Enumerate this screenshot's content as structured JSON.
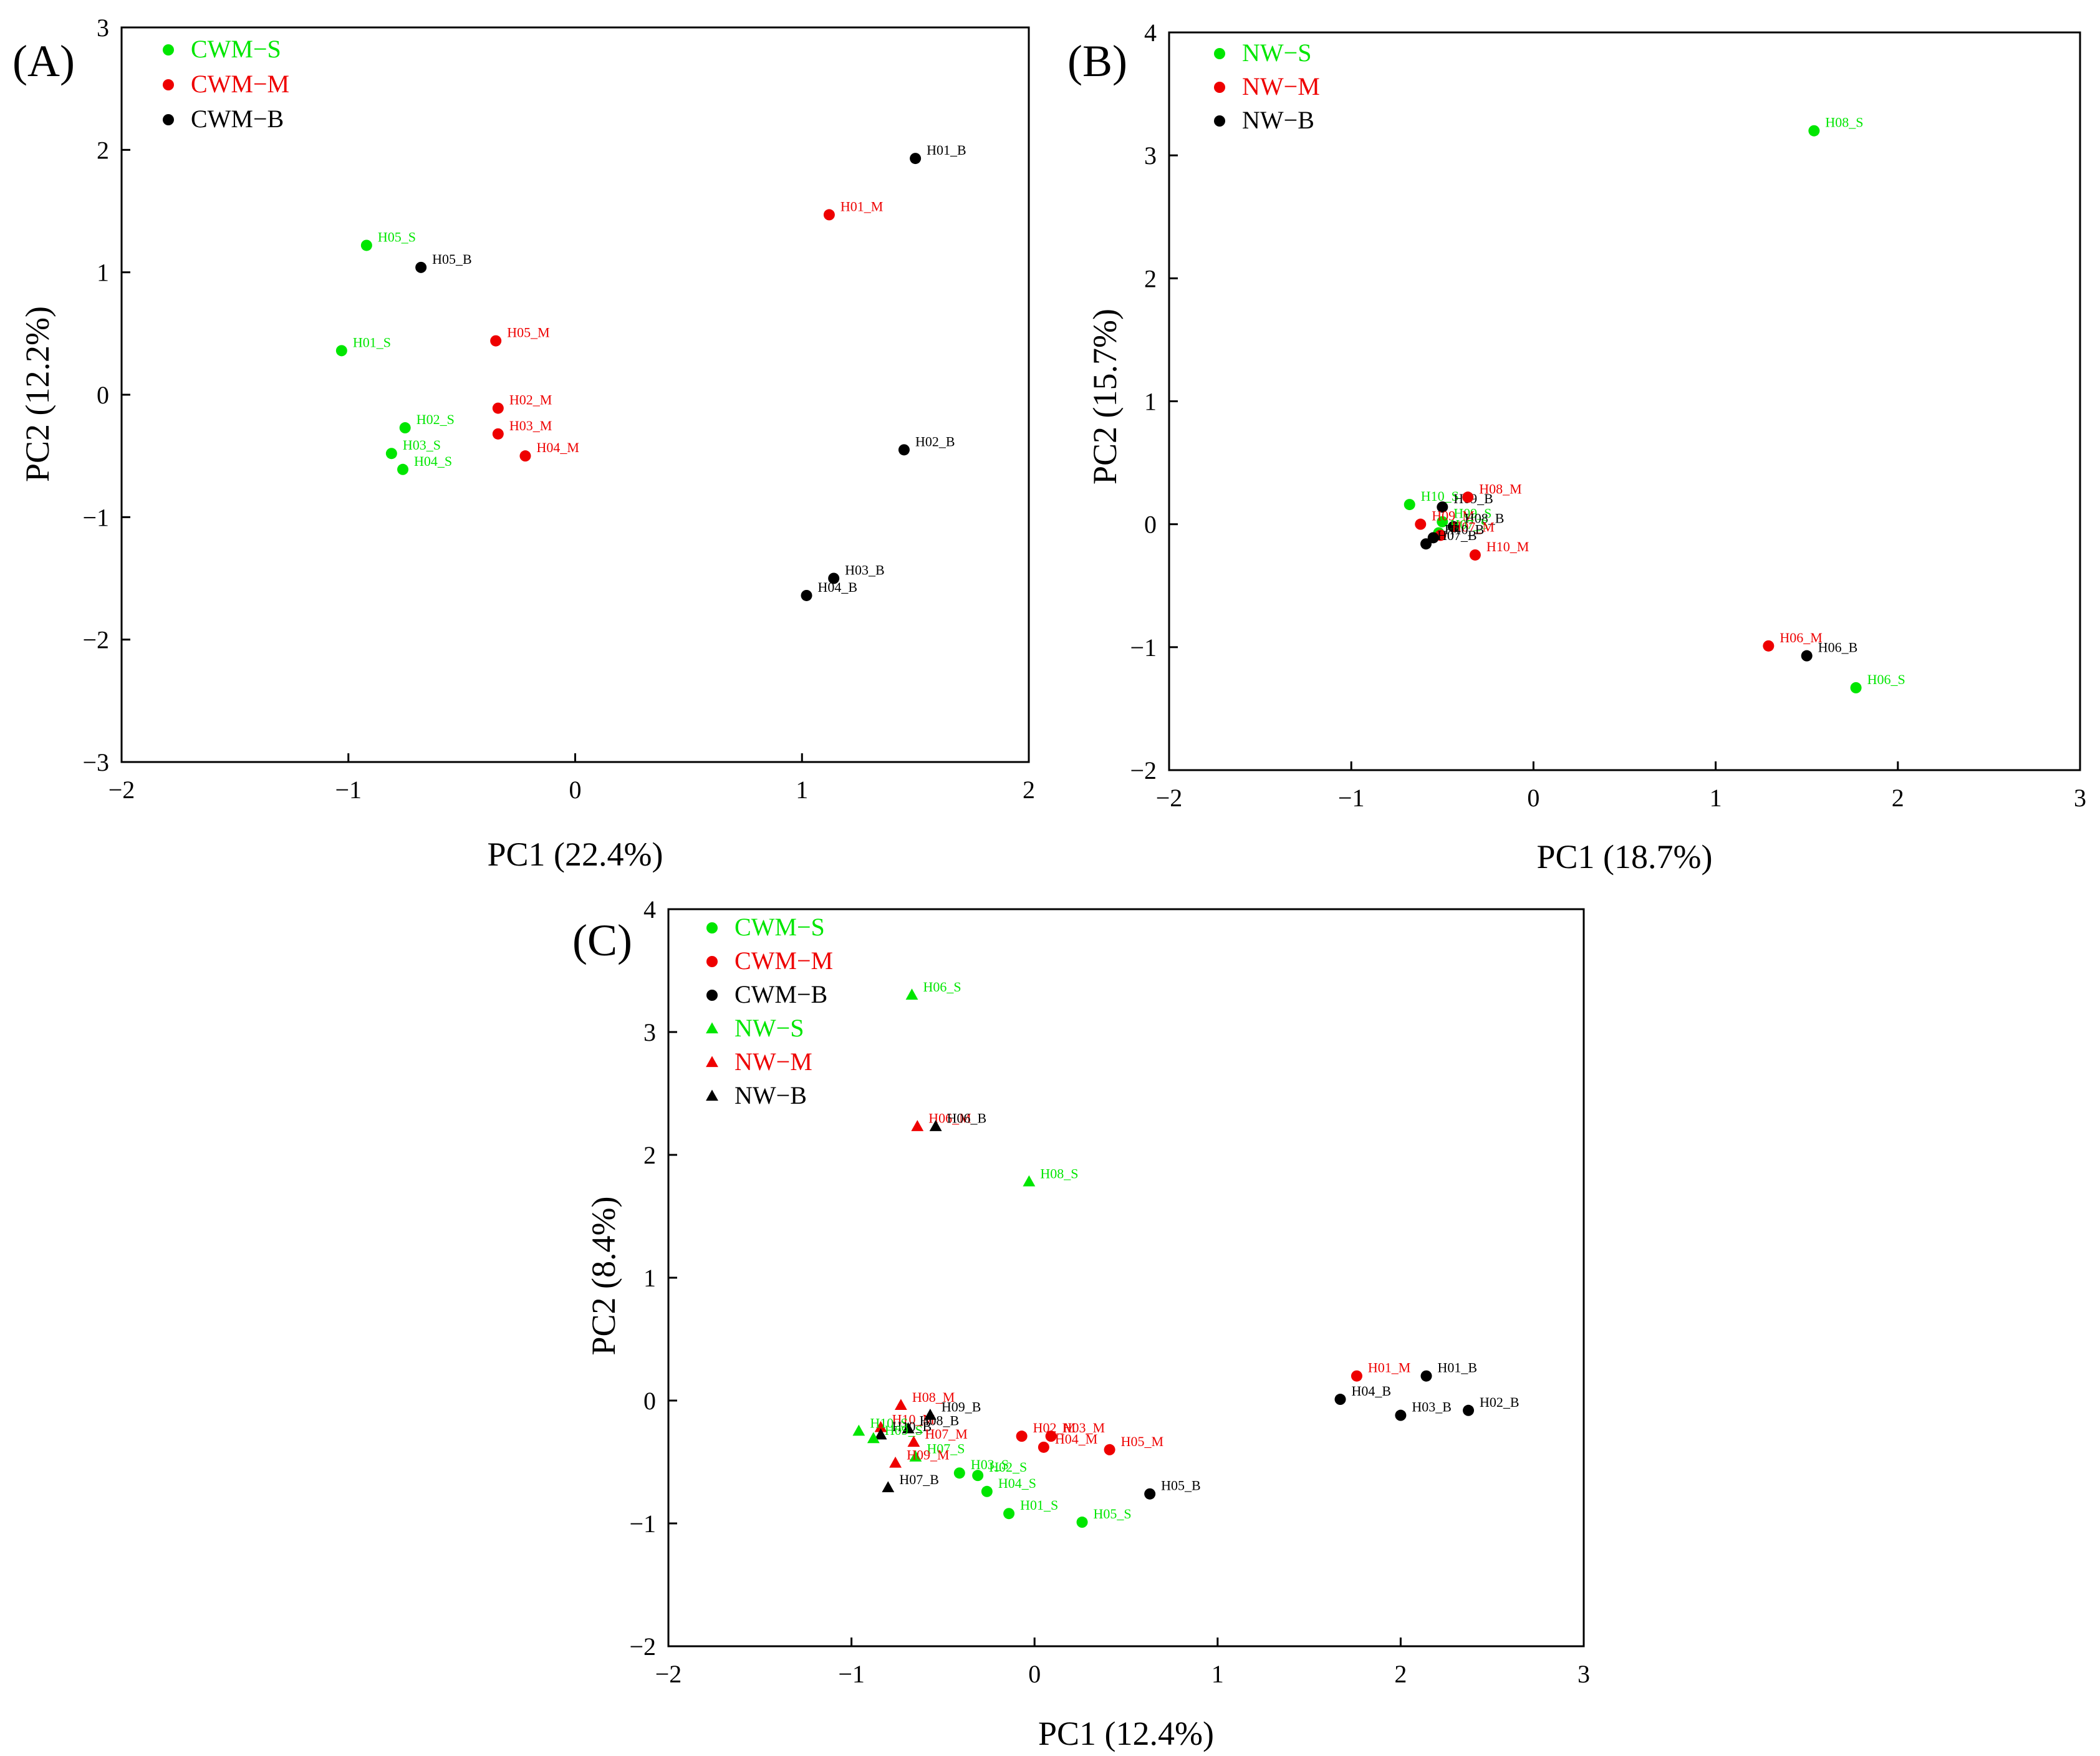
{
  "colors": {
    "S": "#00e600",
    "M": "#ee0000",
    "B": "#000000",
    "axis": "#000000"
  },
  "chart_data": [
    {
      "panel": "(A)",
      "type": "scatter",
      "xlabel": "PC1 (22.4%)",
      "ylabel": "PC2 (12.2%)",
      "xlim": [
        -2,
        2
      ],
      "ylim": [
        -3,
        3
      ],
      "xticks": [
        -2,
        -1,
        0,
        1,
        2
      ],
      "yticks": [
        -3,
        -2,
        -1,
        0,
        1,
        2,
        3
      ],
      "legend_position": "top-left",
      "legend": [
        {
          "label": "CWM−S",
          "group": "S",
          "marker": "circle"
        },
        {
          "label": "CWM−M",
          "group": "M",
          "marker": "circle"
        },
        {
          "label": "CWM−B",
          "group": "B",
          "marker": "circle"
        }
      ],
      "points": [
        {
          "label": "H01_B",
          "group": "B",
          "marker": "circle",
          "x": 1.5,
          "y": 1.93
        },
        {
          "label": "H01_M",
          "group": "M",
          "marker": "circle",
          "x": 1.12,
          "y": 1.47
        },
        {
          "label": "H05_S",
          "group": "S",
          "marker": "circle",
          "x": -0.92,
          "y": 1.22
        },
        {
          "label": "H05_B",
          "group": "B",
          "marker": "circle",
          "x": -0.68,
          "y": 1.04
        },
        {
          "label": "H01_S",
          "group": "S",
          "marker": "circle",
          "x": -1.03,
          "y": 0.36
        },
        {
          "label": "H05_M",
          "group": "M",
          "marker": "circle",
          "x": -0.35,
          "y": 0.44
        },
        {
          "label": "H02_M",
          "group": "M",
          "marker": "circle",
          "x": -0.34,
          "y": -0.11
        },
        {
          "label": "H02_S",
          "group": "S",
          "marker": "circle",
          "x": -0.75,
          "y": -0.27
        },
        {
          "label": "H03_M",
          "group": "M",
          "marker": "circle",
          "x": -0.34,
          "y": -0.32
        },
        {
          "label": "H03_S",
          "group": "S",
          "marker": "circle",
          "x": -0.81,
          "y": -0.48
        },
        {
          "label": "H04_M",
          "group": "M",
          "marker": "circle",
          "x": -0.22,
          "y": -0.5
        },
        {
          "label": "H04_S",
          "group": "S",
          "marker": "circle",
          "x": -0.76,
          "y": -0.61
        },
        {
          "label": "H02_B",
          "group": "B",
          "marker": "circle",
          "x": 1.45,
          "y": -0.45
        },
        {
          "label": "H03_B",
          "group": "B",
          "marker": "circle",
          "x": 1.14,
          "y": -1.5
        },
        {
          "label": "H04_B",
          "group": "B",
          "marker": "circle",
          "x": 1.02,
          "y": -1.64
        }
      ]
    },
    {
      "panel": "(B)",
      "type": "scatter",
      "xlabel": "PC1 (18.7%)",
      "ylabel": "PC2 (15.7%)",
      "xlim": [
        -2,
        3
      ],
      "ylim": [
        -2,
        4
      ],
      "xticks": [
        -2,
        -1,
        0,
        1,
        2,
        3
      ],
      "yticks": [
        -2,
        -1,
        0,
        1,
        2,
        3,
        4
      ],
      "legend_position": "top-left",
      "legend": [
        {
          "label": "NW−S",
          "group": "S",
          "marker": "circle"
        },
        {
          "label": "NW−M",
          "group": "M",
          "marker": "circle"
        },
        {
          "label": "NW−B",
          "group": "B",
          "marker": "circle"
        }
      ],
      "points": [
        {
          "label": "H08_S",
          "group": "S",
          "marker": "circle",
          "x": 1.54,
          "y": 3.2
        },
        {
          "label": "H10_S",
          "group": "S",
          "marker": "circle",
          "x": -0.68,
          "y": 0.16
        },
        {
          "label": "H09_B",
          "group": "B",
          "marker": "circle",
          "x": -0.5,
          "y": 0.14
        },
        {
          "label": "H08_M",
          "group": "M",
          "marker": "circle",
          "x": -0.36,
          "y": 0.22
        },
        {
          "label": "H09_S",
          "group": "S",
          "marker": "circle",
          "x": -0.5,
          "y": 0.02
        },
        {
          "label": "H09_M",
          "group": "M",
          "marker": "circle",
          "x": -0.62,
          "y": 0.0
        },
        {
          "label": "H08_B",
          "group": "B",
          "marker": "circle",
          "x": -0.44,
          "y": -0.02
        },
        {
          "label": "H07_S",
          "group": "S",
          "marker": "circle",
          "x": -0.52,
          "y": -0.07
        },
        {
          "label": "H07_M",
          "group": "M",
          "marker": "circle",
          "x": -0.51,
          "y": -0.09
        },
        {
          "label": "H10_B",
          "group": "B",
          "marker": "circle",
          "x": -0.55,
          "y": -0.11
        },
        {
          "label": "H07_B",
          "group": "B",
          "marker": "circle",
          "x": -0.59,
          "y": -0.16
        },
        {
          "label": "H10_M",
          "group": "M",
          "marker": "circle",
          "x": -0.32,
          "y": -0.25
        },
        {
          "label": "H06_M",
          "group": "M",
          "marker": "circle",
          "x": 1.29,
          "y": -0.99
        },
        {
          "label": "H06_B",
          "group": "B",
          "marker": "circle",
          "x": 1.5,
          "y": -1.07
        },
        {
          "label": "H06_S",
          "group": "S",
          "marker": "circle",
          "x": 1.77,
          "y": -1.33
        }
      ]
    },
    {
      "panel": "(C)",
      "type": "scatter",
      "xlabel": "PC1 (12.4%)",
      "ylabel": "PC2 (8.4%)",
      "xlim": [
        -2,
        3
      ],
      "ylim": [
        -2,
        4
      ],
      "xticks": [
        -2,
        -1,
        0,
        1,
        2,
        3
      ],
      "yticks": [
        -2,
        -1,
        0,
        1,
        2,
        3,
        4
      ],
      "legend_position": "top-left",
      "legend": [
        {
          "label": "CWM−S",
          "group": "S",
          "marker": "circle"
        },
        {
          "label": "CWM−M",
          "group": "M",
          "marker": "circle"
        },
        {
          "label": "CWM−B",
          "group": "B",
          "marker": "circle"
        },
        {
          "label": "NW−S",
          "group": "S",
          "marker": "triangle"
        },
        {
          "label": "NW−M",
          "group": "M",
          "marker": "triangle"
        },
        {
          "label": "NW−B",
          "group": "B",
          "marker": "triangle"
        }
      ],
      "points": [
        {
          "label": "H06_S",
          "group": "S",
          "marker": "triangle",
          "x": -0.67,
          "y": 3.3
        },
        {
          "label": "H06_M",
          "group": "M",
          "marker": "triangle",
          "x": -0.64,
          "y": 2.23
        },
        {
          "label": "H06_B",
          "group": "B",
          "marker": "triangle",
          "x": -0.54,
          "y": 2.23
        },
        {
          "label": "H08_S",
          "group": "S",
          "marker": "triangle",
          "x": -0.03,
          "y": 1.78
        },
        {
          "label": "H01_M",
          "group": "M",
          "marker": "circle",
          "x": 1.76,
          "y": 0.2
        },
        {
          "label": "H01_B",
          "group": "B",
          "marker": "circle",
          "x": 2.14,
          "y": 0.2
        },
        {
          "label": "H04_B",
          "group": "B",
          "marker": "circle",
          "x": 1.67,
          "y": 0.01
        },
        {
          "label": "H03_B",
          "group": "B",
          "marker": "circle",
          "x": 2.0,
          "y": -0.12
        },
        {
          "label": "H02_B",
          "group": "B",
          "marker": "circle",
          "x": 2.37,
          "y": -0.08
        },
        {
          "label": "H08_M",
          "group": "M",
          "marker": "triangle",
          "x": -0.73,
          "y": -0.04
        },
        {
          "label": "H10_M",
          "group": "M",
          "marker": "triangle",
          "x": -0.84,
          "y": -0.22
        },
        {
          "label": "H09_B",
          "group": "B",
          "marker": "triangle",
          "x": -0.57,
          "y": -0.12
        },
        {
          "label": "H08_B",
          "group": "B",
          "marker": "triangle",
          "x": -0.69,
          "y": -0.23
        },
        {
          "label": "H10_S",
          "group": "S",
          "marker": "triangle",
          "x": -0.96,
          "y": -0.25
        },
        {
          "label": "H10_B",
          "group": "B",
          "marker": "triangle",
          "x": -0.84,
          "y": -0.28
        },
        {
          "label": "H09_S",
          "group": "S",
          "marker": "triangle",
          "x": -0.88,
          "y": -0.31
        },
        {
          "label": "H07_M",
          "group": "M",
          "marker": "triangle",
          "x": -0.66,
          "y": -0.34
        },
        {
          "label": "H07_S",
          "group": "S",
          "marker": "triangle",
          "x": -0.65,
          "y": -0.46
        },
        {
          "label": "H09_M",
          "group": "M",
          "marker": "triangle",
          "x": -0.76,
          "y": -0.51
        },
        {
          "label": "H07_B",
          "group": "B",
          "marker": "triangle",
          "x": -0.8,
          "y": -0.71
        },
        {
          "label": "H02_M",
          "group": "M",
          "marker": "circle",
          "x": -0.07,
          "y": -0.29
        },
        {
          "label": "H03_M",
          "group": "M",
          "marker": "circle",
          "x": 0.09,
          "y": -0.29
        },
        {
          "label": "H04_M",
          "group": "M",
          "marker": "circle",
          "x": 0.05,
          "y": -0.38
        },
        {
          "label": "H05_M",
          "group": "M",
          "marker": "circle",
          "x": 0.41,
          "y": -0.4
        },
        {
          "label": "H03_S",
          "group": "S",
          "marker": "circle",
          "x": -0.41,
          "y": -0.59
        },
        {
          "label": "H02_S",
          "group": "S",
          "marker": "circle",
          "x": -0.31,
          "y": -0.61
        },
        {
          "label": "H04_S",
          "group": "S",
          "marker": "circle",
          "x": -0.26,
          "y": -0.74
        },
        {
          "label": "H01_S",
          "group": "S",
          "marker": "circle",
          "x": -0.14,
          "y": -0.92
        },
        {
          "label": "H05_S",
          "group": "S",
          "marker": "circle",
          "x": 0.26,
          "y": -0.99
        },
        {
          "label": "H05_B",
          "group": "B",
          "marker": "circle",
          "x": 0.63,
          "y": -0.76
        }
      ]
    }
  ]
}
